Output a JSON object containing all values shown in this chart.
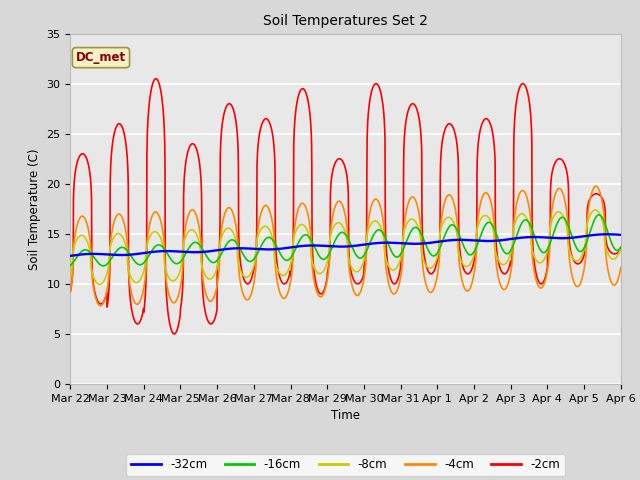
{
  "title": "Soil Temperatures Set 2",
  "xlabel": "Time",
  "ylabel": "Soil Temperature (C)",
  "ylim": [
    0,
    35
  ],
  "background_color": "#d8d8d8",
  "plot_bg": "#e8e8e8",
  "grid_color": "white",
  "label_text": "DC_met",
  "label_color": "#8b0000",
  "label_bg": "#f5f0c8",
  "series_colors": {
    "-32cm": "#0000ff",
    "-16cm": "#00cc00",
    "-8cm": "#cccc00",
    "-4cm": "#ff8800",
    "-2cm": "#ff0000"
  },
  "x_tick_labels": [
    "Mar 22",
    "Mar 23",
    "Mar 24",
    "Mar 25",
    "Mar 26",
    "Mar 27",
    "Mar 28",
    "Mar 29",
    "Mar 30",
    "Mar 31",
    "Apr 1",
    "Apr 2",
    "Apr 3",
    "Apr 4",
    "Apr 5",
    "Apr 6"
  ],
  "y_ticks": [
    0,
    5,
    10,
    15,
    20,
    25,
    30,
    35
  ],
  "figsize": [
    6.4,
    4.8
  ],
  "dpi": 100
}
